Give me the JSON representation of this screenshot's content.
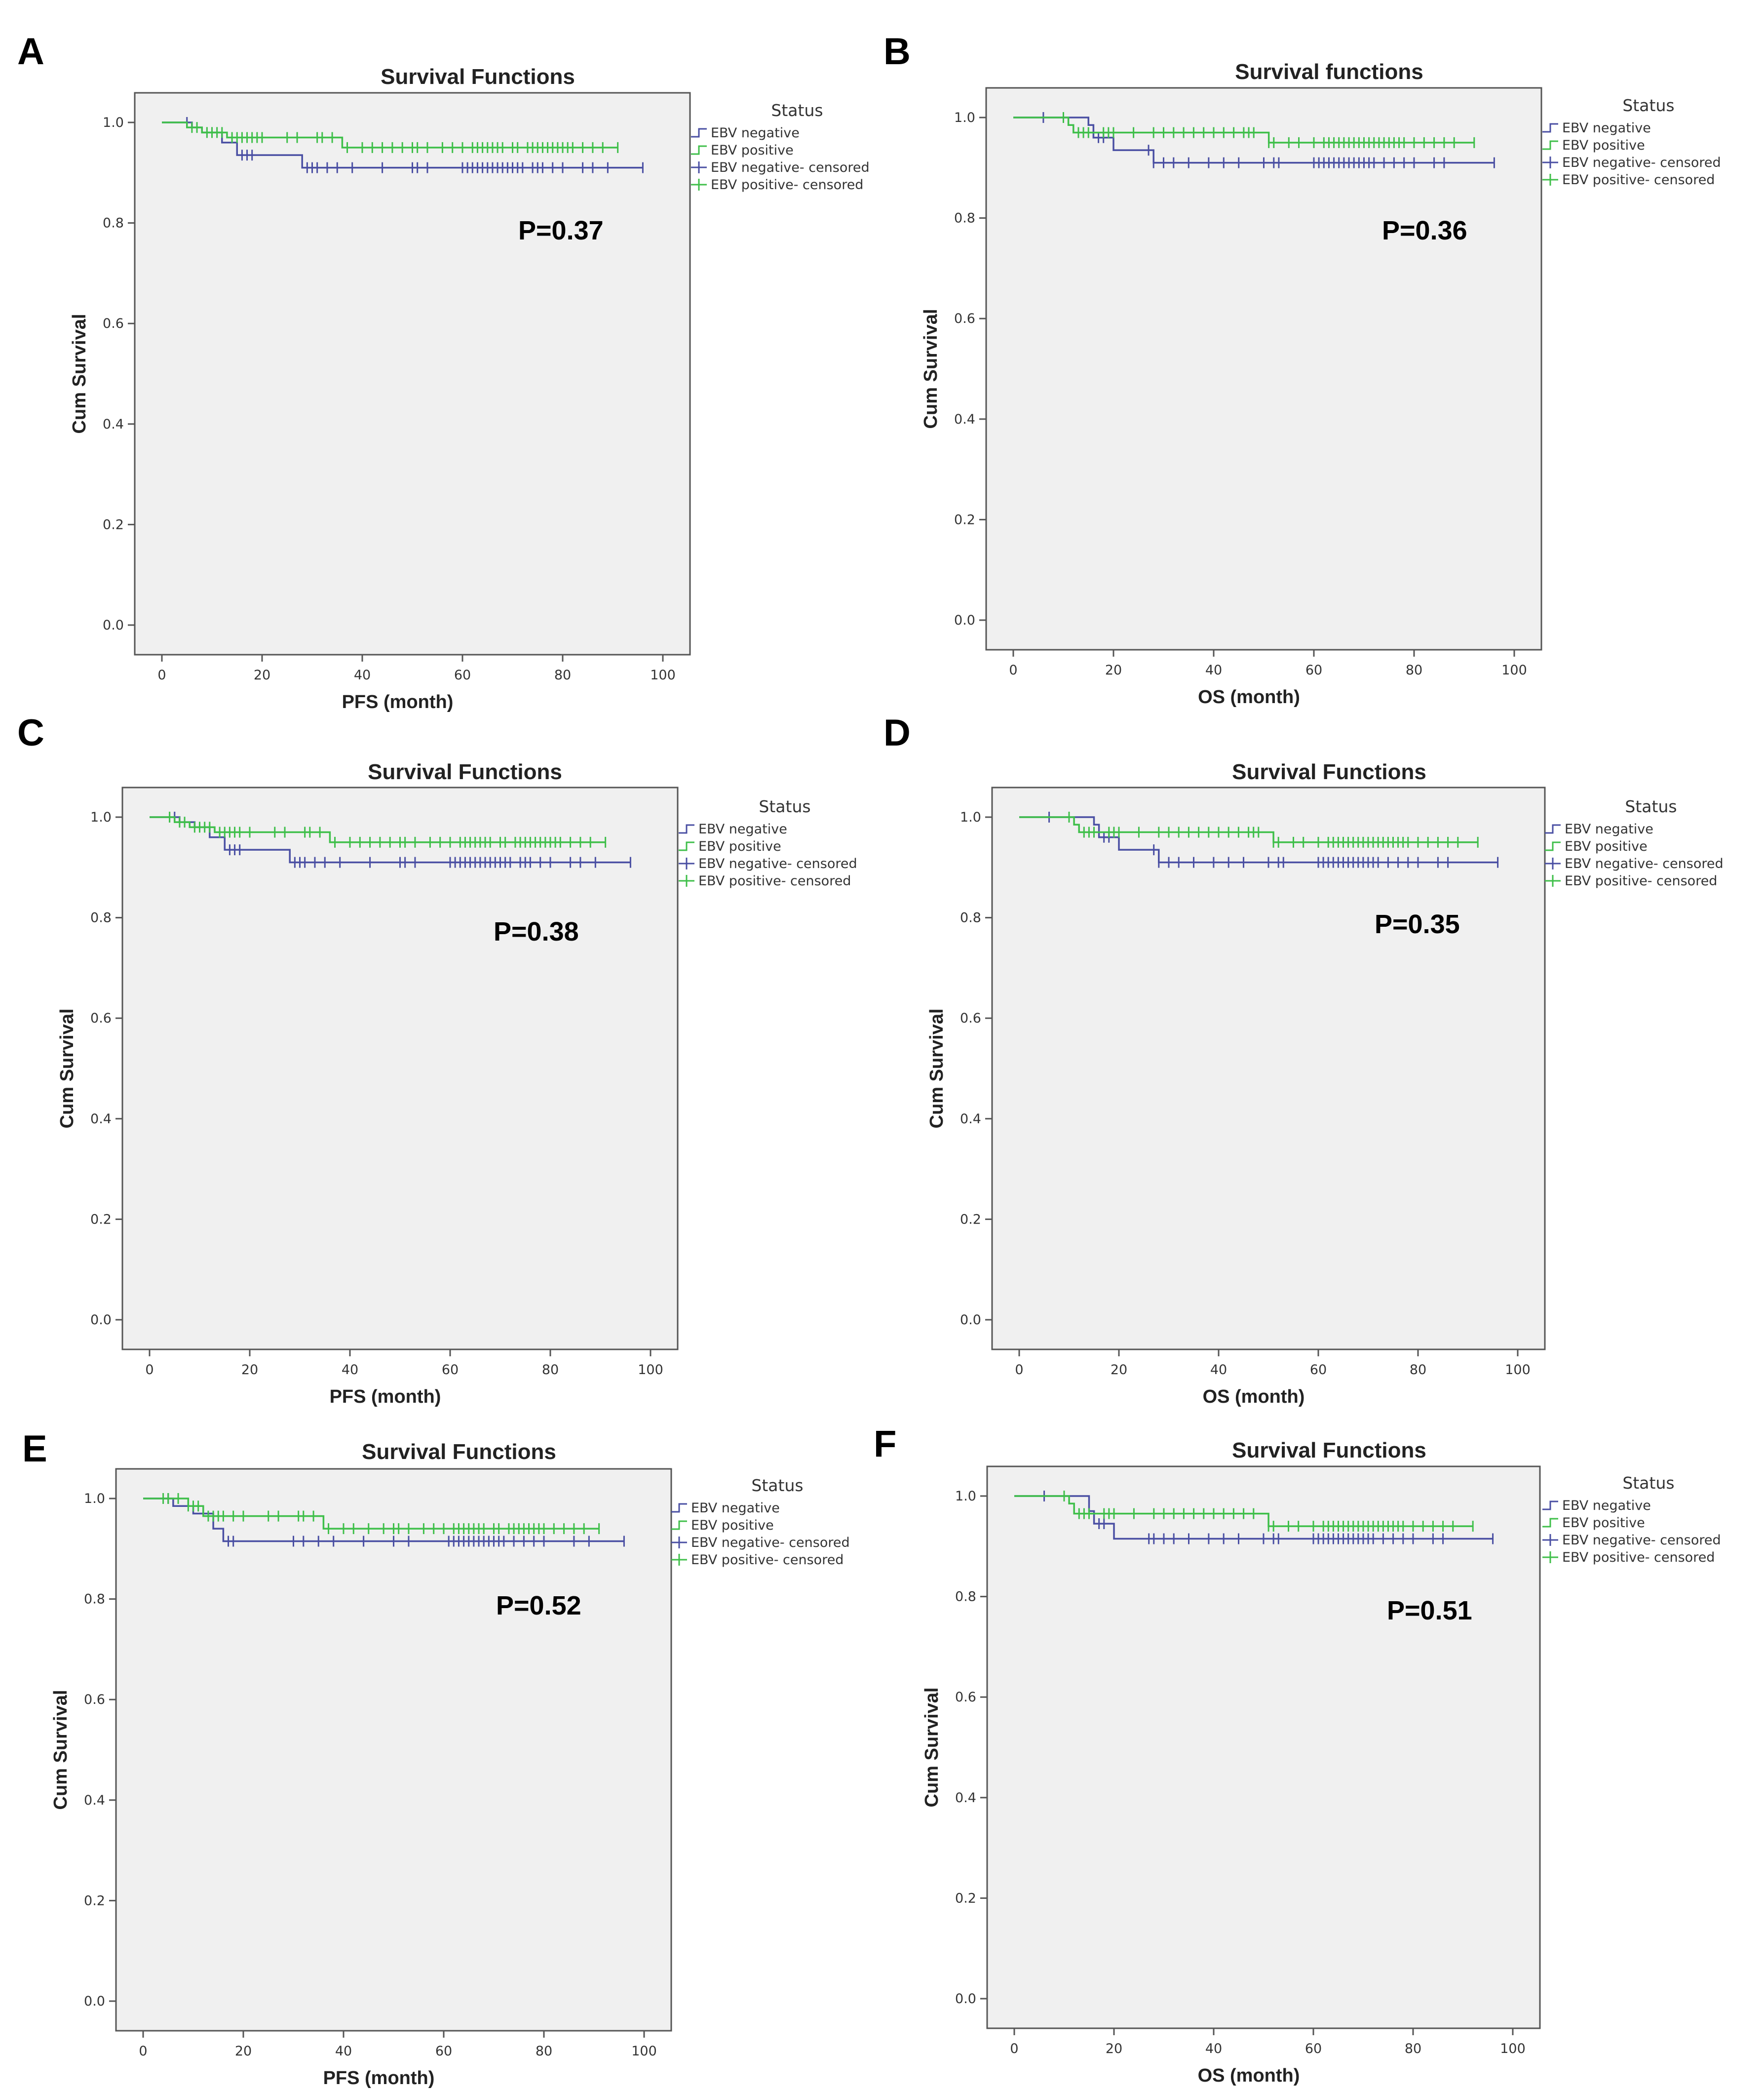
{
  "figure": {
    "colors": {
      "negative": "#4a4fa3",
      "positive": "#3fbf4a",
      "plot_bg": "#f0f0f0",
      "axis": "#555555"
    }
  },
  "chart_data": [
    {
      "panel": "A",
      "type": "line",
      "title": "Survival Functions",
      "xlabel": "PFS (month)",
      "ylabel": "Cum Survival",
      "xlim": [
        0,
        100
      ],
      "ylim": [
        0,
        1.0
      ],
      "x_ticks": [
        "0",
        "20",
        "40",
        "60",
        "80",
        "100"
      ],
      "y_ticks": [
        "0.0",
        "0.2",
        "0.4",
        "0.6",
        "0.8",
        "1.0"
      ],
      "legend_title": "Status",
      "legend": [
        "EBV negative",
        "EBV positive",
        "EBV negative- censored",
        "EBV positive- censored"
      ],
      "annotation": "P=0.37",
      "series": [
        {
          "name": "EBV negative",
          "steps": [
            [
              0,
              1.0
            ],
            [
              6,
              0.99
            ],
            [
              8,
              0.98
            ],
            [
              12,
              0.96
            ],
            [
              15,
              0.935
            ],
            [
              28,
              0.91
            ],
            [
              96,
              0.91
            ]
          ],
          "censored": [
            5,
            16,
            17,
            18,
            29,
            30,
            31,
            33,
            35,
            38,
            44,
            50,
            51,
            53,
            60,
            61,
            62,
            63,
            64,
            65,
            66,
            67,
            68,
            69,
            70,
            71,
            72,
            74,
            75,
            76,
            78,
            80,
            84,
            86,
            89,
            96
          ]
        },
        {
          "name": "EBV positive",
          "steps": [
            [
              0,
              1.0
            ],
            [
              5,
              0.99
            ],
            [
              8,
              0.98
            ],
            [
              13,
              0.97
            ],
            [
              36,
              0.95
            ],
            [
              91,
              0.95
            ]
          ],
          "censored": [
            6,
            7,
            9,
            10,
            11,
            12,
            14,
            15,
            16,
            17,
            18,
            19,
            20,
            25,
            27,
            31,
            32,
            34,
            37,
            40,
            42,
            44,
            46,
            48,
            50,
            51,
            53,
            56,
            58,
            60,
            62,
            63,
            64,
            65,
            66,
            67,
            68,
            70,
            71,
            73,
            74,
            75,
            76,
            77,
            78,
            79,
            80,
            81,
            82,
            84,
            86,
            88,
            91
          ]
        }
      ]
    },
    {
      "panel": "B",
      "type": "line",
      "title": "Survival functions",
      "xlabel": "OS (month)",
      "ylabel": "Cum Survival",
      "xlim": [
        0,
        100
      ],
      "ylim": [
        0,
        1.0
      ],
      "x_ticks": [
        "0",
        "20",
        "40",
        "60",
        "80",
        "100"
      ],
      "y_ticks": [
        "0.0",
        "0.2",
        "0.4",
        "0.6",
        "0.8",
        "1.0"
      ],
      "legend_title": "Status",
      "legend": [
        "EBV negative",
        "EBV positive",
        "EBV negative- censored",
        "EBV positive- censored"
      ],
      "annotation": "P=0.36",
      "series": [
        {
          "name": "EBV negative",
          "steps": [
            [
              0,
              1.0
            ],
            [
              15,
              0.985
            ],
            [
              16,
              0.96
            ],
            [
              20,
              0.935
            ],
            [
              28,
              0.91
            ],
            [
              96,
              0.91
            ]
          ],
          "censored": [
            6,
            17,
            18,
            27,
            28,
            30,
            32,
            35,
            39,
            42,
            45,
            50,
            52,
            53,
            60,
            61,
            62,
            63,
            64,
            65,
            66,
            67,
            68,
            69,
            70,
            71,
            72,
            74,
            76,
            78,
            80,
            84,
            86,
            96
          ]
        },
        {
          "name": "EBV positive",
          "steps": [
            [
              0,
              1.0
            ],
            [
              11,
              0.985
            ],
            [
              12,
              0.97
            ],
            [
              51,
              0.95
            ],
            [
              92,
              0.95
            ]
          ],
          "censored": [
            10,
            13,
            14,
            15,
            18,
            19,
            20,
            24,
            28,
            30,
            32,
            34,
            36,
            38,
            40,
            42,
            44,
            46,
            47,
            48,
            51,
            52,
            55,
            57,
            60,
            62,
            63,
            64,
            65,
            66,
            67,
            68,
            69,
            70,
            71,
            72,
            73,
            74,
            75,
            76,
            77,
            78,
            80,
            82,
            84,
            86,
            88,
            92
          ]
        }
      ]
    },
    {
      "panel": "C",
      "type": "line",
      "title": "Survival Functions",
      "xlabel": "PFS (month)",
      "ylabel": "Cum Survival",
      "xlim": [
        0,
        100
      ],
      "ylim": [
        0,
        1.0
      ],
      "x_ticks": [
        "0",
        "20",
        "40",
        "60",
        "80",
        "100"
      ],
      "y_ticks": [
        "0.0",
        "0.2",
        "0.4",
        "0.6",
        "0.8",
        "1.0"
      ],
      "legend_title": "Status",
      "legend": [
        "EBV negative",
        "EBV positive",
        "EBV negative- censored",
        "EBV positive- censored"
      ],
      "annotation": "P=0.38",
      "series": [
        {
          "name": "EBV negative",
          "steps": [
            [
              0,
              1.0
            ],
            [
              6,
              0.99
            ],
            [
              9,
              0.98
            ],
            [
              12,
              0.96
            ],
            [
              15,
              0.935
            ],
            [
              28,
              0.91
            ],
            [
              96,
              0.91
            ]
          ],
          "censored": [
            5,
            16,
            17,
            18,
            29,
            30,
            31,
            33,
            35,
            38,
            44,
            50,
            51,
            53,
            60,
            61,
            62,
            63,
            64,
            65,
            66,
            67,
            68,
            69,
            70,
            71,
            72,
            74,
            75,
            76,
            78,
            80,
            84,
            86,
            89,
            96
          ]
        },
        {
          "name": "EBV positive",
          "steps": [
            [
              0,
              1.0
            ],
            [
              5,
              0.99
            ],
            [
              8,
              0.98
            ],
            [
              13,
              0.97
            ],
            [
              36,
              0.95
            ],
            [
              91,
              0.95
            ]
          ],
          "censored": [
            4,
            6,
            7,
            9,
            10,
            11,
            12,
            14,
            15,
            16,
            17,
            18,
            20,
            25,
            27,
            31,
            32,
            34,
            37,
            40,
            42,
            44,
            46,
            48,
            50,
            51,
            53,
            56,
            58,
            60,
            62,
            63,
            64,
            65,
            66,
            67,
            68,
            70,
            71,
            73,
            74,
            75,
            76,
            77,
            78,
            79,
            80,
            81,
            82,
            84,
            86,
            88,
            91
          ]
        }
      ]
    },
    {
      "panel": "D",
      "type": "line",
      "title": "Survival Functions",
      "xlabel": "OS (month)",
      "ylabel": "Cum Survival",
      "xlim": [
        0,
        100
      ],
      "ylim": [
        0,
        1.0
      ],
      "x_ticks": [
        "0",
        "20",
        "40",
        "60",
        "80",
        "100"
      ],
      "y_ticks": [
        "0.0",
        "0.2",
        "0.4",
        "0.6",
        "0.8",
        "1.0"
      ],
      "legend_title": "Status",
      "legend": [
        "EBV negative",
        "EBV positive",
        "EBV negative- censored",
        "EBV positive- censored"
      ],
      "annotation": "P=0.35",
      "series": [
        {
          "name": "EBV negative",
          "steps": [
            [
              0,
              1.0
            ],
            [
              15,
              0.985
            ],
            [
              16,
              0.96
            ],
            [
              20,
              0.935
            ],
            [
              28,
              0.91
            ],
            [
              96,
              0.91
            ]
          ],
          "censored": [
            6,
            17,
            18,
            27,
            28,
            30,
            32,
            35,
            39,
            42,
            45,
            50,
            52,
            53,
            60,
            61,
            62,
            63,
            64,
            65,
            66,
            67,
            68,
            69,
            70,
            71,
            72,
            74,
            76,
            78,
            80,
            84,
            86,
            96
          ]
        },
        {
          "name": "EBV positive",
          "steps": [
            [
              0,
              1.0
            ],
            [
              11,
              0.985
            ],
            [
              12,
              0.97
            ],
            [
              51,
              0.95
            ],
            [
              92,
              0.95
            ]
          ],
          "censored": [
            10,
            13,
            14,
            15,
            18,
            19,
            20,
            24,
            28,
            30,
            32,
            34,
            36,
            38,
            40,
            42,
            44,
            46,
            47,
            48,
            51,
            52,
            55,
            57,
            60,
            62,
            63,
            64,
            65,
            66,
            67,
            68,
            69,
            70,
            71,
            72,
            73,
            74,
            75,
            76,
            77,
            78,
            80,
            82,
            84,
            86,
            88,
            92
          ]
        }
      ]
    },
    {
      "panel": "E",
      "type": "line",
      "title": "Survival Functions",
      "xlabel": "PFS (month)",
      "ylabel": "Cum Survival",
      "xlim": [
        0,
        100
      ],
      "ylim": [
        0,
        1.0
      ],
      "x_ticks": [
        "0",
        "20",
        "40",
        "60",
        "80",
        "100"
      ],
      "y_ticks": [
        "0.0",
        "0.2",
        "0.4",
        "0.6",
        "0.8",
        "1.0"
      ],
      "legend_title": "Status",
      "legend": [
        "EBV negative",
        "EBV positive",
        "EBV negative- censored",
        "EBV positive- censored"
      ],
      "annotation": "P=0.52",
      "series": [
        {
          "name": "EBV negative",
          "steps": [
            [
              0,
              1.0
            ],
            [
              6,
              0.985
            ],
            [
              10,
              0.97
            ],
            [
              14,
              0.94
            ],
            [
              16,
              0.915
            ],
            [
              96,
              0.915
            ]
          ],
          "censored": [
            5,
            17,
            18,
            30,
            32,
            35,
            38,
            44,
            50,
            53,
            61,
            62,
            63,
            64,
            65,
            66,
            67,
            68,
            69,
            70,
            71,
            72,
            74,
            76,
            78,
            80,
            86,
            89,
            96
          ]
        },
        {
          "name": "EBV positive",
          "steps": [
            [
              0,
              1.0
            ],
            [
              9,
              0.985
            ],
            [
              12,
              0.965
            ],
            [
              36,
              0.94
            ],
            [
              91,
              0.94
            ]
          ],
          "censored": [
            4,
            5,
            7,
            9,
            10,
            11,
            13,
            14,
            15,
            16,
            18,
            20,
            25,
            27,
            31,
            32,
            34,
            37,
            40,
            42,
            45,
            48,
            50,
            51,
            53,
            56,
            58,
            60,
            62,
            63,
            64,
            65,
            66,
            67,
            68,
            70,
            71,
            73,
            74,
            75,
            76,
            77,
            78,
            79,
            80,
            82,
            84,
            86,
            88,
            91
          ]
        }
      ]
    },
    {
      "panel": "F",
      "type": "line",
      "title": "Survival Functions",
      "xlabel": "OS (month)",
      "ylabel": "Cum Survival",
      "xlim": [
        0,
        100
      ],
      "ylim": [
        0,
        1.0
      ],
      "x_ticks": [
        "0",
        "20",
        "40",
        "60",
        "80",
        "100"
      ],
      "y_ticks": [
        "0.0",
        "0.2",
        "0.4",
        "0.6",
        "0.8",
        "1.0"
      ],
      "legend_title": "Status",
      "legend": [
        "EBV negative",
        "EBV positive",
        "EBV negative- censored",
        "EBV positive- censored"
      ],
      "annotation": "P=0.51",
      "series": [
        {
          "name": "EBV negative",
          "steps": [
            [
              0,
              1.0
            ],
            [
              15,
              0.97
            ],
            [
              16,
              0.945
            ],
            [
              20,
              0.915
            ],
            [
              96,
              0.915
            ]
          ],
          "censored": [
            6,
            17,
            18,
            27,
            28,
            30,
            32,
            35,
            39,
            42,
            45,
            50,
            52,
            53,
            60,
            61,
            62,
            63,
            64,
            65,
            66,
            67,
            68,
            69,
            70,
            71,
            72,
            74,
            76,
            78,
            80,
            84,
            86,
            96
          ]
        },
        {
          "name": "EBV positive",
          "steps": [
            [
              0,
              1.0
            ],
            [
              11,
              0.985
            ],
            [
              12,
              0.965
            ],
            [
              51,
              0.94
            ],
            [
              92,
              0.94
            ]
          ],
          "censored": [
            10,
            13,
            14,
            15,
            18,
            19,
            20,
            24,
            28,
            30,
            32,
            34,
            36,
            38,
            40,
            42,
            44,
            46,
            48,
            51,
            52,
            55,
            57,
            60,
            62,
            63,
            64,
            65,
            66,
            67,
            68,
            69,
            70,
            71,
            72,
            73,
            74,
            75,
            76,
            77,
            78,
            80,
            82,
            84,
            86,
            88,
            92
          ]
        }
      ]
    }
  ]
}
